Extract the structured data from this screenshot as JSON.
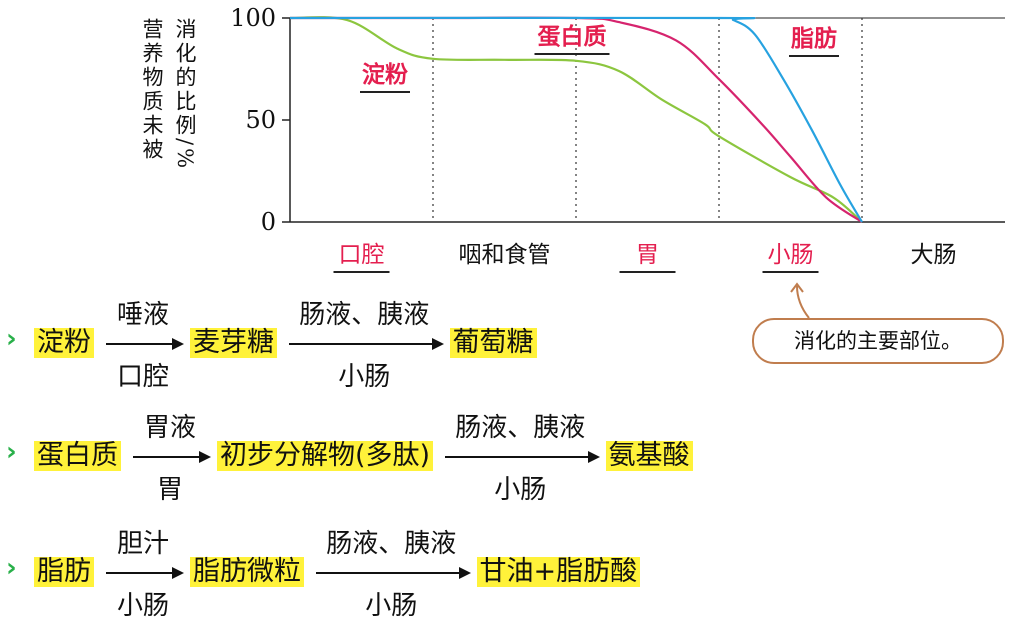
{
  "chart_data": {
    "type": "line",
    "ylabel_lines": [
      "营养物质未被",
      "消化的比例/%"
    ],
    "y_ticks": [
      "100",
      "50",
      "0"
    ],
    "ylim": [
      0,
      100
    ],
    "regions": [
      {
        "label": "口腔",
        "highlight": true
      },
      {
        "label": "咽和食管",
        "highlight": false
      },
      {
        "label": "胃",
        "highlight": true
      },
      {
        "label": "小肠",
        "highlight": true
      },
      {
        "label": "大肠",
        "highlight": false
      }
    ],
    "series": [
      {
        "name": "淀粉",
        "color": "#8cc63f",
        "points": [
          [
            0,
            100
          ],
          [
            0.4,
            99
          ],
          [
            0.75,
            85
          ],
          [
            1,
            80
          ],
          [
            1.5,
            79.5
          ],
          [
            2,
            79
          ],
          [
            2.3,
            74
          ],
          [
            2.6,
            60
          ],
          [
            2.9,
            48
          ],
          [
            3,
            42
          ],
          [
            3.5,
            22
          ],
          [
            3.8,
            12
          ],
          [
            4,
            0
          ]
        ]
      },
      {
        "name": "蛋白质",
        "color": "#d6246e",
        "points": [
          [
            0,
            100
          ],
          [
            1,
            100
          ],
          [
            2,
            100
          ],
          [
            2.3,
            98
          ],
          [
            2.7,
            89
          ],
          [
            3,
            70
          ],
          [
            3.3,
            48
          ],
          [
            3.5,
            32
          ],
          [
            3.75,
            12
          ],
          [
            4,
            0
          ]
        ]
      },
      {
        "name": "脂肪",
        "color": "#27a2e0",
        "points": [
          [
            0,
            100
          ],
          [
            3,
            100
          ],
          [
            3.1,
            99
          ],
          [
            3.25,
            92
          ],
          [
            3.45,
            70
          ],
          [
            3.65,
            45
          ],
          [
            3.85,
            18
          ],
          [
            4,
            0
          ]
        ]
      }
    ],
    "legend_placement": "inline-labels",
    "grid": false
  },
  "callout": {
    "text": "消化的主要部位。"
  },
  "sequences": [
    {
      "steps": [
        {
          "text": "淀粉"
        },
        {
          "text": "麦芽糖",
          "above": "唾液",
          "below": "口腔"
        },
        {
          "text": "葡萄糖",
          "above": "肠液、胰液",
          "below": "小肠"
        }
      ]
    },
    {
      "steps": [
        {
          "text": "蛋白质"
        },
        {
          "text": "初步分解物(多肽)",
          "above": "胃液",
          "below": "胃"
        },
        {
          "text": "氨基酸",
          "above": "肠液、胰液",
          "below": "小肠"
        }
      ]
    },
    {
      "steps": [
        {
          "text": "脂肪"
        },
        {
          "text": "脂肪微粒",
          "above": "胆汁",
          "below": "小肠"
        },
        {
          "text": "甘油+脂肪酸",
          "above": "肠液、胰液",
          "below": "小肠"
        }
      ]
    }
  ]
}
